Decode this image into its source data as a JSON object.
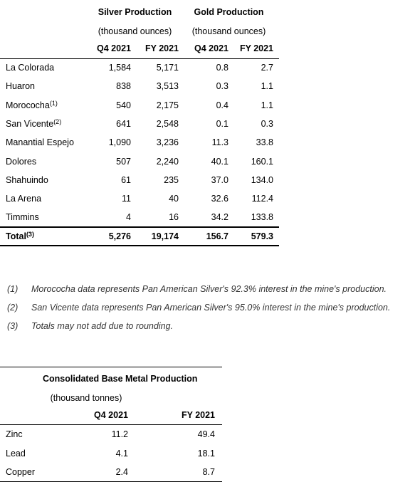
{
  "production": {
    "silver_header": "Silver Production",
    "gold_header": "Gold Production",
    "silver_unit": "(thousand ounces)",
    "gold_unit": "(thousand ounces)",
    "col_q4": "Q4 2021",
    "col_fy": "FY 2021",
    "rows": [
      {
        "mine": "La Colorada",
        "sup": "",
        "silver_q4": "1,584",
        "silver_fy": "5,171",
        "gold_q4": "0.8",
        "gold_fy": "2.7"
      },
      {
        "mine": "Huaron",
        "sup": "",
        "silver_q4": "838",
        "silver_fy": "3,513",
        "gold_q4": "0.3",
        "gold_fy": "1.1"
      },
      {
        "mine": "Morococha",
        "sup": "(1)",
        "silver_q4": "540",
        "silver_fy": "2,175",
        "gold_q4": "0.4",
        "gold_fy": "1.1"
      },
      {
        "mine": "San Vicente",
        "sup": "(2)",
        "silver_q4": "641",
        "silver_fy": "2,548",
        "gold_q4": "0.1",
        "gold_fy": "0.3"
      },
      {
        "mine": "Manantial Espejo",
        "sup": "",
        "silver_q4": "1,090",
        "silver_fy": "3,236",
        "gold_q4": "11.3",
        "gold_fy": "33.8"
      },
      {
        "mine": "Dolores",
        "sup": "",
        "silver_q4": "507",
        "silver_fy": "2,240",
        "gold_q4": "40.1",
        "gold_fy": "160.1"
      },
      {
        "mine": "Shahuindo",
        "sup": "",
        "silver_q4": "61",
        "silver_fy": "235",
        "gold_q4": "37.0",
        "gold_fy": "134.0"
      },
      {
        "mine": "La Arena",
        "sup": "",
        "silver_q4": "11",
        "silver_fy": "40",
        "gold_q4": "32.6",
        "gold_fy": "112.4"
      },
      {
        "mine": "Timmins",
        "sup": "",
        "silver_q4": "4",
        "silver_fy": "16",
        "gold_q4": "34.2",
        "gold_fy": "133.8"
      }
    ],
    "total": {
      "label": "Total",
      "sup": "(3)",
      "silver_q4": "5,276",
      "silver_fy": "19,174",
      "gold_q4": "156.7",
      "gold_fy": "579.3"
    }
  },
  "notes": [
    {
      "num": "(1)",
      "text": "Morococha data represents Pan American Silver's 92.3% interest in the mine's production."
    },
    {
      "num": "(2)",
      "text": "San Vicente data represents Pan American Silver's 95.0% interest in the mine's production."
    },
    {
      "num": "(3)",
      "text": "Totals may not add due to rounding."
    }
  ],
  "base_metal": {
    "header": "Consolidated Base Metal Production",
    "unit": "(thousand tonnes)",
    "col_q4": "Q4 2021",
    "col_fy": "FY 2021",
    "rows": [
      {
        "metal": "Zinc",
        "q4": "11.2",
        "fy": "49.4"
      },
      {
        "metal": "Lead",
        "q4": "4.1",
        "fy": "18.1"
      },
      {
        "metal": "Copper",
        "q4": "2.4",
        "fy": "8.7"
      }
    ]
  }
}
